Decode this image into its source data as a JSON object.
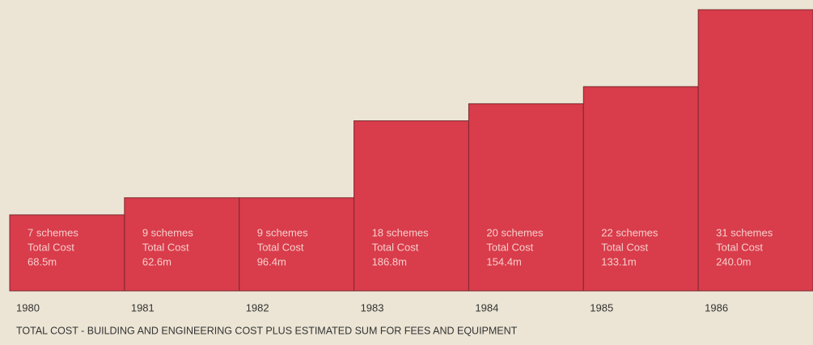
{
  "chart_data": {
    "type": "bar",
    "categories": [
      "1980",
      "1981",
      "1982",
      "1983",
      "1984",
      "1985",
      "1986"
    ],
    "values": [
      7,
      9,
      9,
      18,
      20,
      22,
      31
    ],
    "value_labels": [
      "7 schemes",
      "9 schemes",
      "9 schemes",
      "18 schemes",
      "20 schemes",
      "22 schemes",
      "31 schemes"
    ],
    "cost_caption": "Total Cost",
    "costs": [
      68.5,
      62.6,
      96.4,
      186.8,
      154.4,
      133.1,
      240.0
    ],
    "cost_labels": [
      "68.5m",
      "62.6m",
      "96.4m",
      "186.8m",
      "154.4m",
      "133.1m",
      "240.0m"
    ],
    "color": "#d93c4b",
    "note": "TOTAL COST - BUILDING AND ENGINEERING COST PLUS ESTIMATED SUM FOR FEES AND EQUIPMENT"
  }
}
